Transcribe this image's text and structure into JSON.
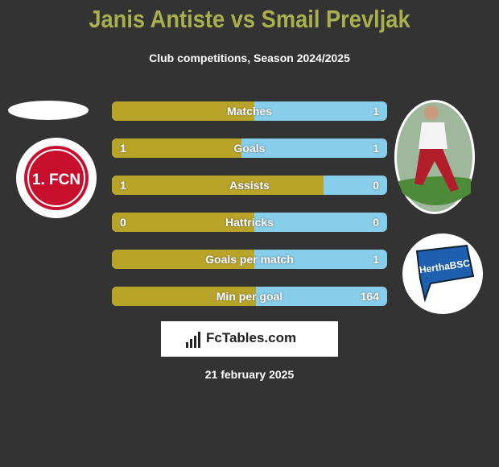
{
  "header": {
    "title": "Janis Antiste vs Smail Prevljak",
    "subtitle": "Club competitions, Season 2024/2025"
  },
  "left_team": {
    "logo_text": "1. FCN"
  },
  "right_team": {
    "logo_text": "HerthaBSC"
  },
  "rows": [
    {
      "label": "Matches",
      "right": 1
    },
    {
      "label": "Goals",
      "left": 1,
      "right": 1
    },
    {
      "label": "Assists",
      "left": 1,
      "right": 0
    },
    {
      "label": "Hattricks",
      "left": 0,
      "right": 0
    },
    {
      "label": "Goals per match",
      "right": 1
    },
    {
      "label": "Min per goal",
      "right": 164
    }
  ],
  "footer": {
    "brand": "FcTables.com",
    "date": "21 february 2025"
  }
}
